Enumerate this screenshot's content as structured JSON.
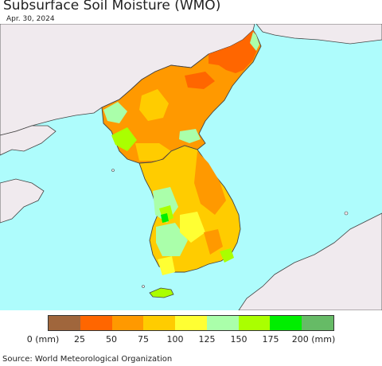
{
  "header": {
    "title": "Subsurface Soil Moisture (WMO)",
    "date": "Apr. 30, 2024"
  },
  "map": {
    "ocean_color": "#aefcfc",
    "land_outside_color": "#f0eaee",
    "border_color": "#444444"
  },
  "legend": {
    "labels": [
      "0 (mm)",
      "25",
      "50",
      "75",
      "100",
      "125",
      "150",
      "175",
      "200 (mm)"
    ],
    "colors": [
      "#a0663c",
      "#ff6600",
      "#ff9900",
      "#ffcc00",
      "#ffff33",
      "#aaffaa",
      "#aaff00",
      "#00ee00",
      "#66bb66"
    ]
  },
  "footer": {
    "source": "Source: World Meteorological Organization"
  }
}
